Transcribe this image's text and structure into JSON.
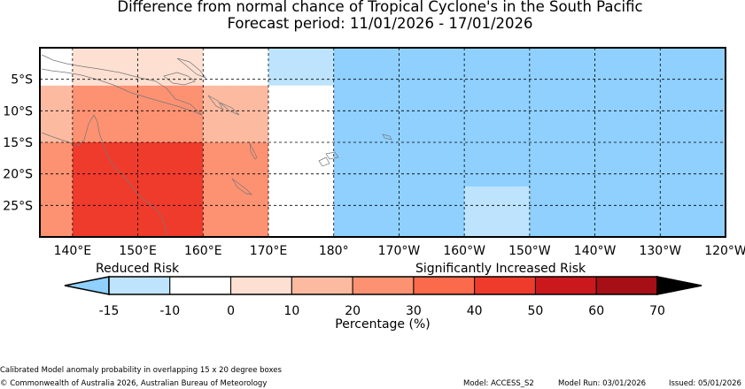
{
  "title": {
    "line1": "Difference from normal chance of Tropical Cyclone's in the South Pacific",
    "line2": "Forecast period: 11/01/2026 - 17/01/2026"
  },
  "map": {
    "lon_range": [
      135,
      240
    ],
    "lat_range": [
      0,
      -30
    ],
    "lon_ticks": [
      {
        "lon": 140,
        "label": "140°E"
      },
      {
        "lon": 150,
        "label": "150°E"
      },
      {
        "lon": 160,
        "label": "160°E"
      },
      {
        "lon": 170,
        "label": "170°E"
      },
      {
        "lon": 180,
        "label": "180°"
      },
      {
        "lon": 190,
        "label": "170°W"
      },
      {
        "lon": 200,
        "label": "160°W"
      },
      {
        "lon": 210,
        "label": "150°W"
      },
      {
        "lon": 220,
        "label": "140°W"
      },
      {
        "lon": 230,
        "label": "130°W"
      },
      {
        "lon": 240,
        "label": "120°W"
      }
    ],
    "lat_ticks": [
      {
        "lat": -5,
        "label": "5°S"
      },
      {
        "lat": -10,
        "label": "10°S"
      },
      {
        "lat": -15,
        "label": "15°S"
      },
      {
        "lat": -20,
        "label": "20°S"
      },
      {
        "lat": -25,
        "label": "25°S"
      }
    ],
    "cells": [
      {
        "lon": [
          135,
          140
        ],
        "lat": [
          0,
          -6
        ],
        "bin": "-10..0"
      },
      {
        "lon": [
          140,
          160
        ],
        "lat": [
          0,
          -6
        ],
        "bin": "0..10"
      },
      {
        "lon": [
          160,
          170
        ],
        "lat": [
          0,
          -6
        ],
        "bin": "-10..0"
      },
      {
        "lon": [
          170,
          180
        ],
        "lat": [
          0,
          -6
        ],
        "bin": "-15..-10"
      },
      {
        "lon": [
          180,
          240
        ],
        "lat": [
          0,
          -30
        ],
        "bin": "<-15"
      },
      {
        "lon": [
          135,
          140
        ],
        "lat": [
          -6,
          -15
        ],
        "bin": "10..20"
      },
      {
        "lon": [
          140,
          160
        ],
        "lat": [
          -6,
          -15
        ],
        "bin": "20..30"
      },
      {
        "lon": [
          160,
          170
        ],
        "lat": [
          -6,
          -15
        ],
        "bin": "10..20"
      },
      {
        "lon": [
          170,
          180
        ],
        "lat": [
          -6,
          -30
        ],
        "bin": "-10..0"
      },
      {
        "lon": [
          135,
          140
        ],
        "lat": [
          -15,
          -30
        ],
        "bin": "20..30"
      },
      {
        "lon": [
          140,
          160
        ],
        "lat": [
          -15,
          -30
        ],
        "bin": "40..50"
      },
      {
        "lon": [
          160,
          170
        ],
        "lat": [
          -15,
          -30
        ],
        "bin": "20..30"
      },
      {
        "lon": [
          200,
          210
        ],
        "lat": [
          -22,
          -30
        ],
        "bin": "-15..-10"
      }
    ]
  },
  "colorbar": {
    "reduced_label": "Reduced Risk",
    "increased_label": "Significantly Increased Risk",
    "axis_label": "Percentage (%)",
    "ticks": [
      "-15",
      "-10",
      "0",
      "10",
      "20",
      "30",
      "40",
      "50",
      "60",
      "70"
    ],
    "under_color": "#8fd0ff",
    "over_color": "#000000",
    "colors": [
      "#bde4fc",
      "#ffffff",
      "#fee0d2",
      "#fcbba1",
      "#fc9272",
      "#fb6a4a",
      "#ef3b2c",
      "#cb181d",
      "#a50f15"
    ]
  },
  "colors": {
    "<-15": "#8fd0ff",
    "-15..-10": "#bde4fc",
    "-10..0": "#ffffff",
    "0..10": "#fee0d2",
    "10..20": "#fcbba1",
    "20..30": "#fc9272",
    "30..40": "#fb6a4a",
    "40..50": "#ef3b2c",
    "coast": "#777777"
  },
  "footer": {
    "description": "Calibrated Model anomaly probability in overlapping 15 x 20 degree boxes",
    "copyright": "© Commonwealth of Australia 2026, Australian Bureau of Meteorology",
    "model": "Model: ACCESS_S2",
    "model_run": "Model Run: 03/01/2026",
    "issued": "Issued: 05/01/2026"
  }
}
